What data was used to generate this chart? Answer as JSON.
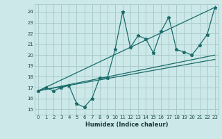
{
  "title": "",
  "xlabel": "Humidex (Indice chaleur)",
  "ylabel": "",
  "bg_color": "#cce8e8",
  "grid_color": "#aacccc",
  "line_color": "#1a6b6b",
  "xlim": [
    -0.5,
    23.5
  ],
  "ylim": [
    14.5,
    24.7
  ],
  "xticks": [
    0,
    1,
    2,
    3,
    4,
    5,
    6,
    7,
    8,
    9,
    10,
    11,
    12,
    13,
    14,
    15,
    16,
    17,
    18,
    19,
    20,
    21,
    22,
    23
  ],
  "yticks": [
    15,
    16,
    17,
    18,
    19,
    20,
    21,
    22,
    23,
    24
  ],
  "data_x": [
    0,
    1,
    2,
    3,
    4,
    5,
    6,
    7,
    8,
    9,
    10,
    11,
    12,
    13,
    14,
    15,
    16,
    17,
    18,
    19,
    20,
    21,
    22,
    23
  ],
  "data_y": [
    16.7,
    17.0,
    16.7,
    17.0,
    17.2,
    15.5,
    15.2,
    16.0,
    17.9,
    17.9,
    20.5,
    24.0,
    20.7,
    21.8,
    21.5,
    20.2,
    22.2,
    23.5,
    20.5,
    20.3,
    20.0,
    20.9,
    21.9,
    24.4
  ],
  "trend1_x": [
    0,
    23
  ],
  "trend1_y": [
    16.7,
    20.0
  ],
  "trend2_x": [
    0,
    23
  ],
  "trend2_y": [
    16.7,
    19.6
  ],
  "trend3_x": [
    0,
    23
  ],
  "trend3_y": [
    16.7,
    24.4
  ]
}
